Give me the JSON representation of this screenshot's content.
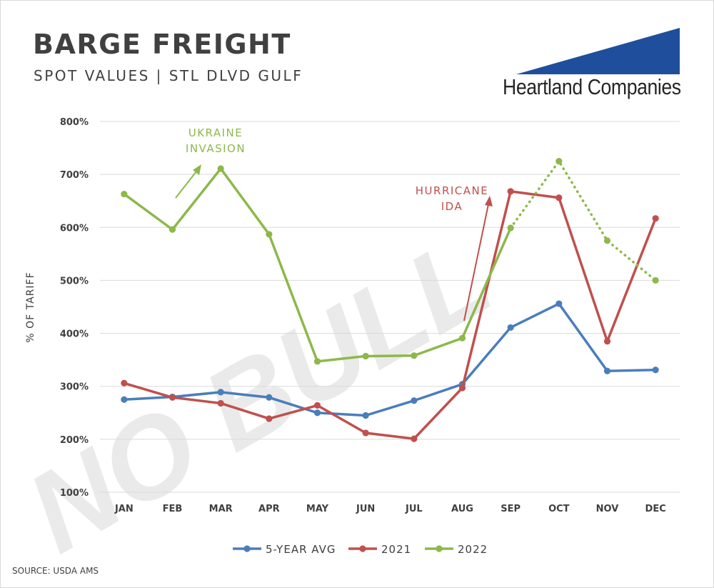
{
  "header": {
    "title": "BARGE FREIGHT",
    "subtitle": "SPOT VALUES | STL DLVD GULF"
  },
  "logo": {
    "text": "Heartland Companies",
    "color": "#1f4e9c"
  },
  "watermark": {
    "text": "NO BULL"
  },
  "source": "SOURCE: USDA AMS",
  "annotations": {
    "ukraine": {
      "lines": [
        "UKRAINE",
        "INVASION"
      ],
      "color": "#8db84a"
    },
    "hurricane": {
      "lines": [
        "HURRICANE",
        "IDA"
      ],
      "color": "#c0504d"
    }
  },
  "chart_data": {
    "type": "line",
    "categories": [
      "JAN",
      "FEB",
      "MAR",
      "APR",
      "MAY",
      "JUN",
      "JUL",
      "AUG",
      "SEP",
      "OCT",
      "NOV",
      "DEC"
    ],
    "ylabel": "% OF TARIFF",
    "ylim": [
      100,
      800
    ],
    "yticks": [
      100,
      200,
      300,
      400,
      500,
      600,
      700,
      800
    ],
    "ytick_labels": [
      "100%",
      "200%",
      "300%",
      "400%",
      "500%",
      "600%",
      "700%",
      "800%"
    ],
    "grid": true,
    "legend_position": "bottom",
    "series": [
      {
        "name": "5-YEAR AVG",
        "color": "#4a7ebb",
        "values": [
          275,
          280,
          289,
          279,
          250,
          245,
          273,
          304,
          411,
          456,
          329,
          331
        ]
      },
      {
        "name": "2021",
        "color": "#c0504d",
        "values": [
          306,
          279,
          268,
          239,
          264,
          212,
          201,
          297,
          668,
          656,
          385,
          617
        ]
      },
      {
        "name": "2022",
        "color": "#8db84a",
        "values": [
          663,
          596,
          711,
          587,
          347,
          357,
          358,
          391,
          599,
          725,
          575,
          500
        ],
        "dotted_from_index": 8
      }
    ]
  }
}
